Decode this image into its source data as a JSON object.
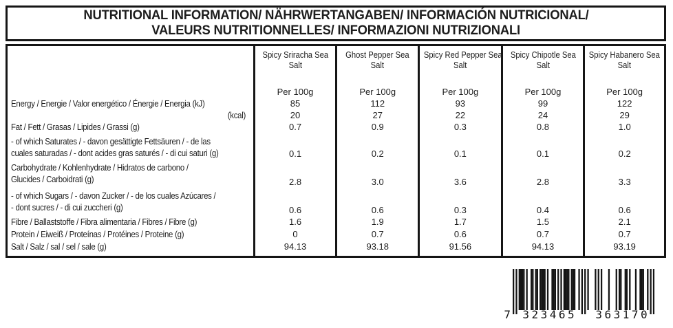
{
  "colors": {
    "ink": "#151515",
    "background": "#ffffff"
  },
  "title": {
    "line1": "NUTRITIONAL INFORMATION/ NÄHRWERTANGABEN/ INFORMACIÓN NUTRICIONAL/",
    "line2": "VALEURS NUTRITIONNELLES/ INFORMAZIONI NUTRIZIONALI"
  },
  "table": {
    "per_label": "Per 100g",
    "products": [
      {
        "line1": "Spicy Sriracha Sea",
        "line2": "Salt"
      },
      {
        "line1": "Ghost Pepper Sea",
        "line2": "Salt"
      },
      {
        "line1": "Spicy Red Pepper Sea",
        "line2": "Salt"
      },
      {
        "line1": "Spicy Chipotle Sea",
        "line2": "Salt"
      },
      {
        "line1": "Spicy Habanero Sea",
        "line2": "Salt"
      }
    ],
    "rows": {
      "energy_kj": {
        "label": "Energy / Energie / Valor energético / Énergie / Energia (kJ)",
        "values": [
          "85",
          "112",
          "93",
          "99",
          "122"
        ]
      },
      "energy_kcal": {
        "label": "(kcal)",
        "values": [
          "20",
          "27",
          "22",
          "24",
          "29"
        ]
      },
      "fat": {
        "label": "Fat / Fett / Grasas / Lipides / Grassi (g)",
        "values": [
          "0.7",
          "0.9",
          "0.3",
          "0.8",
          "1.0"
        ]
      },
      "saturates": {
        "line1": "- of which Saturates / - davon gesättigte Fettsäuren / - de las",
        "line2": "cuales saturadas / - dont acides gras saturés / - di cui saturi (g)",
        "values": [
          "0.1",
          "0.2",
          "0.1",
          "0.1",
          "0.2"
        ]
      },
      "carbohydrate": {
        "line1": "Carbohydrate / Kohlenhydrate / Hidratos de carbono /",
        "line2": "Glucides / Carboidrati (g)",
        "values": [
          "2.8",
          "3.0",
          "3.6",
          "2.8",
          "3.3"
        ]
      },
      "sugars": {
        "line1": "- of which Sugars / - davon Zucker / - de los cuales Azúcares /",
        "line2": "- dont sucres / - di cui zuccheri (g)",
        "values": [
          "0.6",
          "0.6",
          "0.3",
          "0.4",
          "0.6"
        ]
      },
      "fibre": {
        "label": "Fibre / Ballaststoffe / Fibra alimentaria / Fibres / Fibre (g)",
        "values": [
          "1.6",
          "1.9",
          "1.7",
          "1.5",
          "2.1"
        ]
      },
      "protein": {
        "label": "Protein / Eiweiß / Proteínas / Protéines / Proteine (g)",
        "values": [
          "0",
          "0.7",
          "0.6",
          "0.7",
          "0.7"
        ]
      },
      "salt": {
        "label": "Salt / Salz / sal / sel / sale (g)",
        "values": [
          "94.13",
          "93.18",
          "91.56",
          "94.13",
          "93.19"
        ]
      }
    }
  },
  "barcode": {
    "code": "7323465363170",
    "prefix": "7",
    "group_left": "323465",
    "group_right": "363170",
    "pattern": "10101111010011011011110100111010101111011100101010100001010100001000010110011010001001110010101",
    "guard_indices": [
      0,
      2,
      46,
      48,
      92,
      94
    ]
  }
}
